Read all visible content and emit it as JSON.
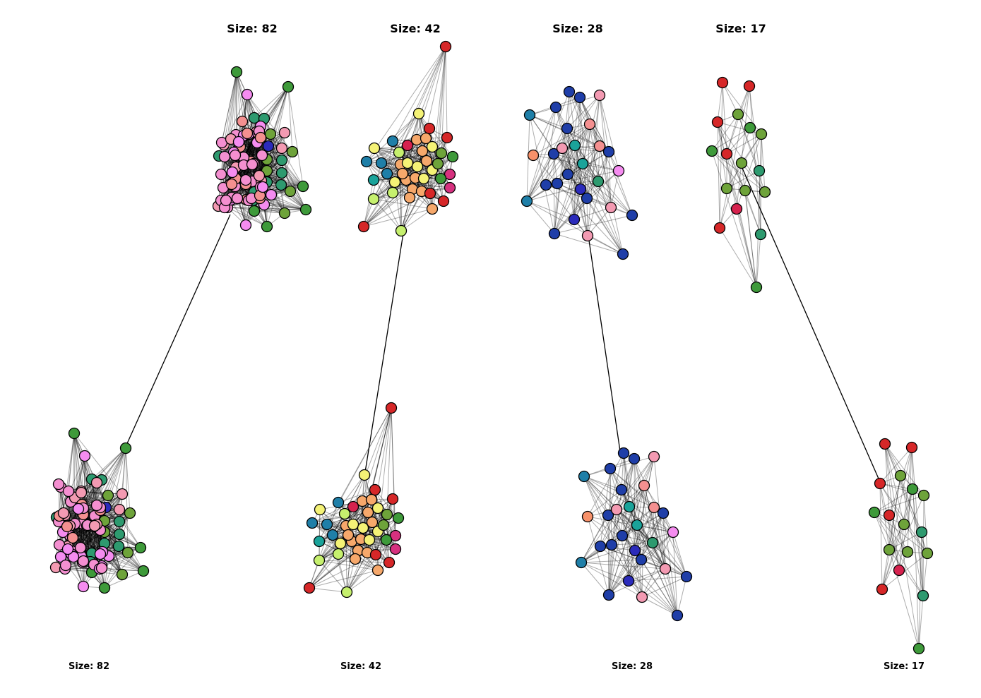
{
  "communities": [
    {
      "title": "Size: 82",
      "bottom_title": "Size: 82",
      "size": 82
    },
    {
      "title": "Size: 42",
      "bottom_title": "Size: 42",
      "size": 42
    },
    {
      "title": "Size: 28",
      "bottom_title": "Size: 28",
      "size": 28
    },
    {
      "title": "Size: 17",
      "bottom_title": "Size: 17",
      "size": 17
    }
  ],
  "palette": {
    "pink": "#f48fd0",
    "magenta": "#f58cf0",
    "salmon": "#f39ab2",
    "green": "#3e9a3a",
    "teal_green": "#2e9a6f",
    "olive": "#6ea33a",
    "navy": "#1f3ea8",
    "blue": "#2b2bbb",
    "steel": "#1f7fa8",
    "teal": "#1aa39a",
    "red": "#d62728",
    "crimson": "#d6224e",
    "rose": "#d6317f",
    "orange": "#f6a86b",
    "yellow": "#f4f276",
    "lime": "#c6f06e",
    "light_salmon": "#f49090",
    "coral": "#f7916a",
    "edge": "#000000"
  }
}
